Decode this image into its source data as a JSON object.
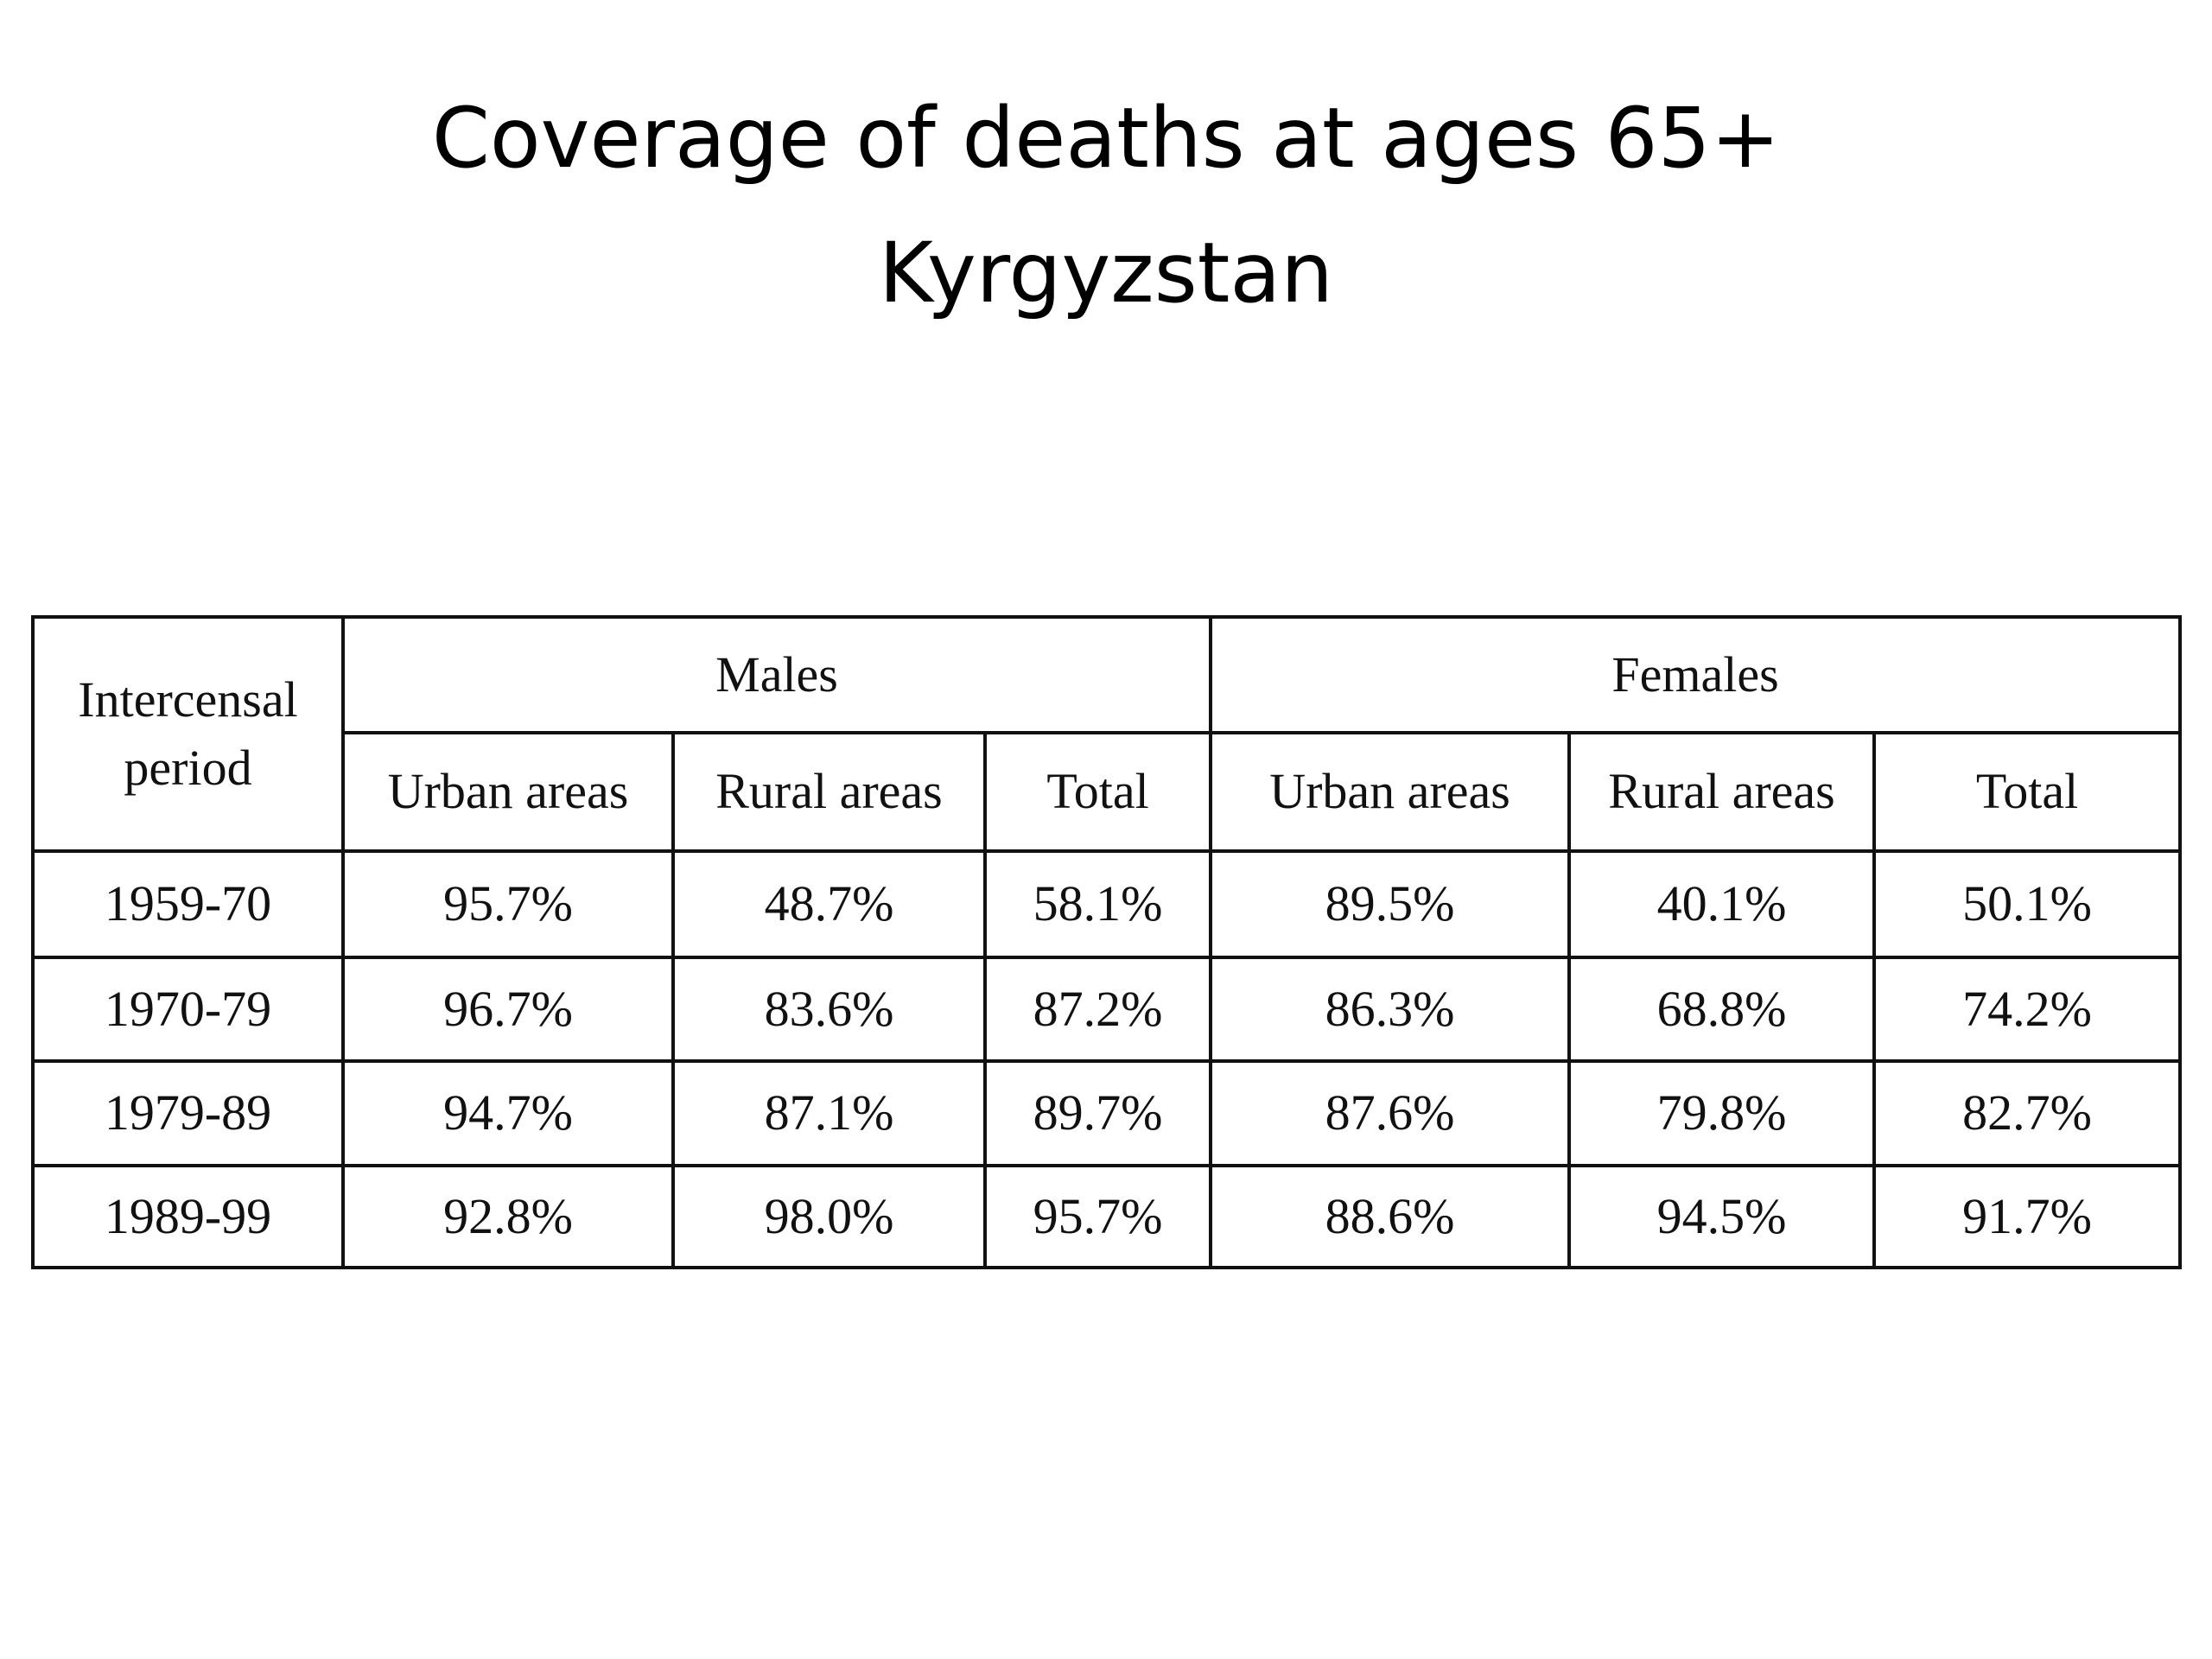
{
  "header": {
    "title": [
      "Coverage of deaths at ages 65+",
      "Kyrgyzstan"
    ]
  },
  "table": {
    "corner": [
      "Intercensal",
      "period"
    ],
    "groups": [
      "Males",
      "Females"
    ],
    "subheaders": [
      "Urban areas",
      "Rural areas",
      "Total",
      "Urban areas",
      "Rural areas",
      "Total"
    ],
    "rows": [
      [
        "1959-70",
        "95.7%",
        "48.7%",
        "58.1%",
        "89.5%",
        "40.1%",
        "50.1%"
      ],
      [
        "1970-79",
        "96.7%",
        "83.6%",
        "87.2%",
        "86.3%",
        "68.8%",
        "74.2%"
      ],
      [
        "1979-89",
        "94.7%",
        "87.1%",
        "89.7%",
        "87.6%",
        "79.8%",
        "82.7%"
      ],
      [
        "1989-99",
        "92.8%",
        "98.0%",
        "95.7%",
        "88.6%",
        "94.5%",
        "91.7%"
      ]
    ]
  }
}
